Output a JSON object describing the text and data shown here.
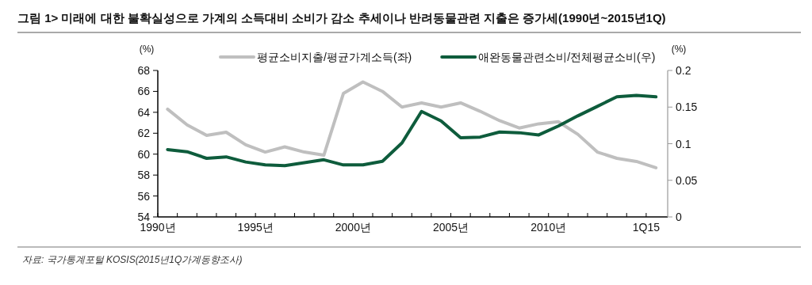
{
  "chart_data": {
    "type": "line",
    "title": "그림 1> 미래에 대한 불확실성으로 가계의 소득대비 소비가 감소 추세이나 반려동물관련 지출은 증가세(1990년~2015년1Q)",
    "ylabel": "(%)",
    "y2label": "(%)",
    "x": [
      1990.5,
      1991.5,
      1992.5,
      1993.5,
      1994.5,
      1995.5,
      1996.5,
      1997.5,
      1998.5,
      1999.5,
      2000.5,
      2001.5,
      2002.5,
      2003.5,
      2004.5,
      2005.5,
      2006.5,
      2007.5,
      2008.5,
      2009.5,
      2010.5,
      2011.5,
      2012.5,
      2013.5,
      2014.5,
      2015.5
    ],
    "series": [
      {
        "name": "평균소비지출/평균가계소득(좌)",
        "color": "#bfbfbf",
        "values": [
          64.3,
          62.8,
          61.8,
          62.1,
          60.9,
          60.2,
          60.7,
          60.2,
          59.9,
          65.8,
          66.9,
          66.0,
          64.5,
          64.9,
          64.5,
          64.9,
          64.1,
          63.2,
          62.5,
          62.9,
          63.1,
          61.9,
          60.2,
          59.6,
          59.3,
          58.7
        ]
      },
      {
        "name": "애완동물관련소비/전체평균소비(우)",
        "color": "#0e5c3c",
        "axis": "y2",
        "values": [
          0.092,
          0.089,
          0.08,
          0.082,
          0.075,
          0.071,
          0.07,
          0.074,
          0.078,
          0.071,
          0.071,
          0.076,
          0.101,
          0.144,
          0.131,
          0.108,
          0.109,
          0.116,
          0.115,
          0.112,
          0.124,
          0.138,
          0.151,
          0.164,
          0.166,
          0.164
        ]
      }
    ],
    "xlim": [
      1990,
      2016.1
    ],
    "xticks": [
      {
        "value": 1990,
        "label": "1990년"
      },
      {
        "value": 1991,
        "label": null
      },
      {
        "value": 1992,
        "label": null
      },
      {
        "value": 1993,
        "label": null
      },
      {
        "value": 1994,
        "label": null
      },
      {
        "value": 1995,
        "label": "1995년"
      },
      {
        "value": 1996,
        "label": null
      },
      {
        "value": 1997,
        "label": null
      },
      {
        "value": 1998,
        "label": null
      },
      {
        "value": 1999,
        "label": null
      },
      {
        "value": 2000,
        "label": "2000년"
      },
      {
        "value": 2001,
        "label": null
      },
      {
        "value": 2002,
        "label": null
      },
      {
        "value": 2003,
        "label": null
      },
      {
        "value": 2004,
        "label": null
      },
      {
        "value": 2005,
        "label": "2005년"
      },
      {
        "value": 2006,
        "label": null
      },
      {
        "value": 2007,
        "label": null
      },
      {
        "value": 2008,
        "label": null
      },
      {
        "value": 2009,
        "label": null
      },
      {
        "value": 2010,
        "label": "2010년"
      },
      {
        "value": 2011,
        "label": null
      },
      {
        "value": 2012,
        "label": null
      },
      {
        "value": 2013,
        "label": null
      },
      {
        "value": 2014,
        "label": null
      },
      {
        "value": 2015,
        "label": "1Q15"
      }
    ],
    "ylim": [
      54,
      68
    ],
    "yticks": [
      54,
      56,
      58,
      60,
      62,
      64,
      66,
      68
    ],
    "y2lim": [
      0,
      0.2
    ],
    "y2ticks": [
      0,
      0.05,
      0.1,
      0.15,
      0.2
    ],
    "legend": "top",
    "grid": false,
    "annotations": [
      "자료: 국가통계포털 KOSIS(2015년1Q가계동향조사)"
    ]
  }
}
